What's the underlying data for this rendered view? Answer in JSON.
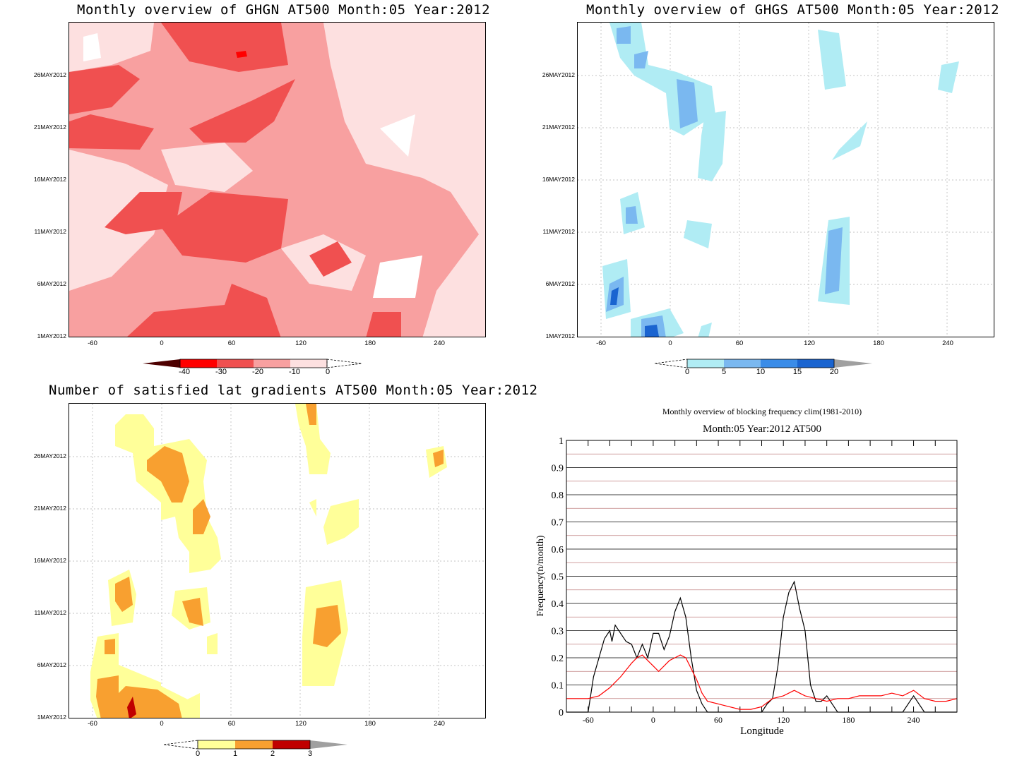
{
  "panels": {
    "ghgn": {
      "title": "Monthly overview of GHGN AT500 Month:05 Year:2012",
      "y_ticks": [
        "26MAY2012",
        "21MAY2012",
        "16MAY2012",
        "11MAY2012",
        "6MAY2012",
        "1MAY2012"
      ],
      "x_ticks": [
        "-60",
        "0",
        "60",
        "120",
        "180",
        "240"
      ],
      "colorbar": {
        "labels": [
          "-40",
          "-30",
          "-20",
          "-10",
          "0"
        ],
        "colors": [
          "#4d0000",
          "#ff0000",
          "#f05050",
          "#f8a0a0",
          "#fde0e0"
        ]
      }
    },
    "ghgs": {
      "title": "Monthly overview of GHGS AT500 Month:05 Year:2012",
      "y_ticks": [
        "26MAY2012",
        "21MAY2012",
        "16MAY2012",
        "11MAY2012",
        "6MAY2012",
        "1MAY2012"
      ],
      "x_ticks": [
        "-60",
        "0",
        "60",
        "120",
        "180",
        "240"
      ],
      "colorbar": {
        "labels": [
          "0",
          "5",
          "10",
          "15",
          "20"
        ],
        "colors": [
          "#b0ecf4",
          "#7ab8f0",
          "#3a8ce8",
          "#1a64d0",
          "#a0a0a0"
        ]
      }
    },
    "lat": {
      "title": "Number of satisfied lat gradients AT500 Month:05 Year:2012",
      "y_ticks": [
        "26MAY2012",
        "21MAY2012",
        "16MAY2012",
        "11MAY2012",
        "6MAY2012",
        "1MAY2012"
      ],
      "x_ticks": [
        "-60",
        "0",
        "60",
        "120",
        "180",
        "240"
      ],
      "colorbar": {
        "labels": [
          "0",
          "1",
          "2",
          "3"
        ],
        "colors": [
          "#ffff99",
          "#f8a030",
          "#c00000",
          "#a0a0a0"
        ]
      }
    },
    "freq": {
      "title": "Monthly overview of blocking frequency clim(1981-2010)",
      "subtitle": "Month:05 Year:2012  AT500",
      "xlabel": "Longitude",
      "ylabel": "Frequency(n/month)",
      "x_ticks": [
        "-60",
        "0",
        "60",
        "120",
        "180",
        "240"
      ],
      "y_ticks": [
        "0",
        "0.1",
        "0.2",
        "0.3",
        "0.4",
        "0.5",
        "0.6",
        "0.7",
        "0.8",
        "0.9",
        "1"
      ]
    }
  },
  "chart_data": [
    {
      "type": "heatmap",
      "title": "Monthly overview of GHGN AT500 Month:05 Year:2012",
      "x_range": [
        -80,
        280
      ],
      "y_range": [
        "1MAY2012",
        "31MAY2012"
      ],
      "levels": [
        -40,
        -30,
        -20,
        -10,
        0
      ]
    },
    {
      "type": "heatmap",
      "title": "Monthly overview of GHGS AT500 Month:05 Year:2012",
      "x_range": [
        -80,
        280
      ],
      "y_range": [
        "1MAY2012",
        "31MAY2012"
      ],
      "levels": [
        0,
        5,
        10,
        15,
        20
      ]
    },
    {
      "type": "heatmap",
      "title": "Number of satisfied lat gradients AT500 Month:05 Year:2012",
      "x_range": [
        -80,
        280
      ],
      "y_range": [
        "1MAY2012",
        "31MAY2012"
      ],
      "levels": [
        0,
        1,
        2,
        3
      ]
    },
    {
      "type": "line",
      "title": "Monthly overview of blocking frequency clim(1981-2010)",
      "subtitle": "Month:05 Year:2012  AT500",
      "xlabel": "Longitude",
      "ylabel": "Frequency(n/month)",
      "xlim": [
        -80,
        280
      ],
      "ylim": [
        0,
        1
      ],
      "series": [
        {
          "color": "#000000",
          "x": [
            -80,
            -60,
            -55,
            -50,
            -45,
            -40,
            -38,
            -35,
            -30,
            -25,
            -20,
            -15,
            -10,
            -5,
            0,
            5,
            10,
            15,
            20,
            25,
            30,
            35,
            40,
            45,
            50,
            55,
            60,
            100,
            105,
            110,
            115,
            120,
            125,
            130,
            135,
            140,
            145,
            150,
            155,
            160,
            165,
            170,
            175,
            180,
            200,
            220,
            230,
            235,
            240,
            245,
            250,
            280
          ],
          "y": [
            0,
            0,
            0.13,
            0.2,
            0.27,
            0.3,
            0.26,
            0.32,
            0.29,
            0.26,
            0.25,
            0.2,
            0.25,
            0.2,
            0.29,
            0.29,
            0.23,
            0.28,
            0.37,
            0.42,
            0.35,
            0.2,
            0.08,
            0.03,
            0,
            0,
            0,
            0,
            0.03,
            0.05,
            0.17,
            0.35,
            0.44,
            0.48,
            0.38,
            0.3,
            0.1,
            0.04,
            0.04,
            0.06,
            0.03,
            0,
            0,
            0,
            0,
            0,
            0,
            0.03,
            0.06,
            0.03,
            0,
            0
          ]
        },
        {
          "color": "#ff0000",
          "x": [
            -80,
            -70,
            -60,
            -50,
            -40,
            -30,
            -20,
            -15,
            -10,
            -5,
            0,
            5,
            10,
            15,
            20,
            25,
            30,
            35,
            40,
            45,
            50,
            60,
            70,
            80,
            90,
            100,
            110,
            120,
            130,
            140,
            150,
            160,
            170,
            180,
            190,
            200,
            210,
            220,
            230,
            240,
            250,
            260,
            270,
            280
          ],
          "y": [
            0.05,
            0.05,
            0.05,
            0.06,
            0.09,
            0.13,
            0.18,
            0.2,
            0.21,
            0.19,
            0.17,
            0.15,
            0.17,
            0.19,
            0.2,
            0.21,
            0.2,
            0.16,
            0.12,
            0.07,
            0.04,
            0.03,
            0.02,
            0.01,
            0.01,
            0.02,
            0.05,
            0.06,
            0.08,
            0.06,
            0.05,
            0.04,
            0.05,
            0.05,
            0.06,
            0.06,
            0.06,
            0.07,
            0.06,
            0.08,
            0.05,
            0.04,
            0.04,
            0.05
          ]
        }
      ]
    }
  ]
}
